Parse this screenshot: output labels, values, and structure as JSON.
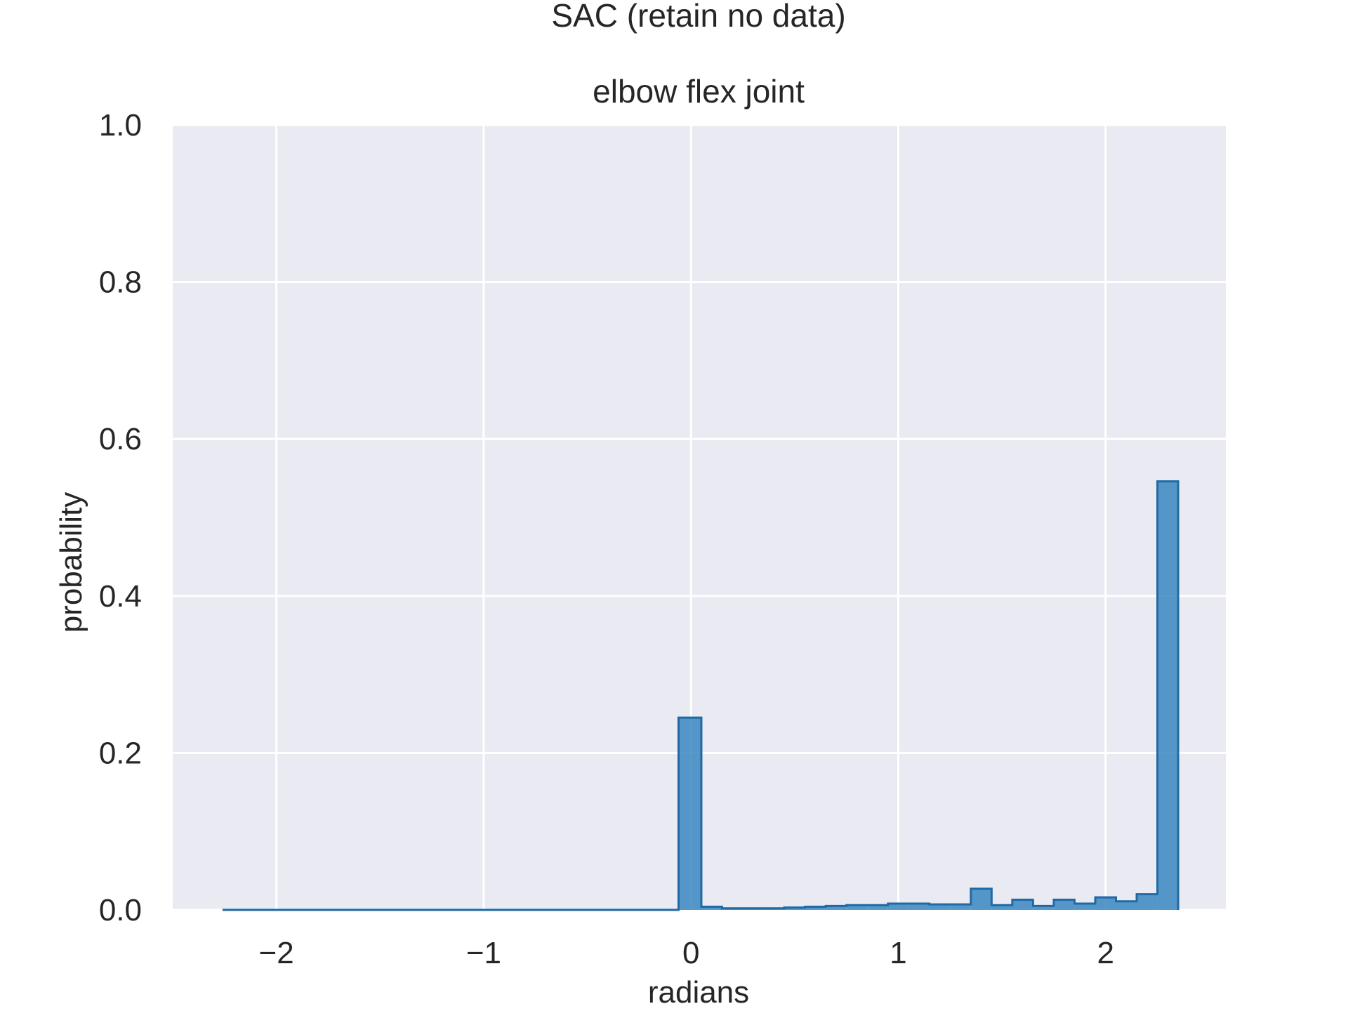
{
  "figure": {
    "suptitle": "SAC (retain no data)"
  },
  "chart_data": {
    "type": "bar",
    "subtype": "histogram-step-filled",
    "title": "elbow flex joint",
    "xlabel": "radians",
    "ylabel": "probability",
    "xlim": [
      -2.5,
      2.58
    ],
    "ylim": [
      0.0,
      1.0
    ],
    "xticks": [
      -2,
      -1,
      0,
      1,
      2
    ],
    "xtick_labels": [
      "−2",
      "−1",
      "0",
      "1",
      "2"
    ],
    "yticks": [
      0.0,
      0.2,
      0.4,
      0.6,
      0.8,
      1.0
    ],
    "ytick_labels": [
      "0.0",
      "0.2",
      "0.4",
      "0.6",
      "0.8",
      "1.0"
    ],
    "grid": true,
    "legend": "none",
    "colors": {
      "background": "#eaeaf2",
      "grid": "#ffffff",
      "bar_fill": "#3a87c0",
      "bar_edge": "#1f6aa5"
    },
    "bins": {
      "edges": [
        -2.26,
        -2.16,
        -2.06,
        -1.96,
        -1.86,
        -1.76,
        -1.66,
        -1.56,
        -1.46,
        -1.36,
        -1.26,
        -1.16,
        -1.06,
        -0.96,
        -0.86,
        -0.76,
        -0.66,
        -0.56,
        -0.46,
        -0.36,
        -0.26,
        -0.16,
        -0.06,
        0.05,
        0.15,
        0.25,
        0.35,
        0.45,
        0.55,
        0.65,
        0.75,
        0.85,
        0.95,
        1.05,
        1.15,
        1.25,
        1.35,
        1.45,
        1.55,
        1.65,
        1.75,
        1.85,
        1.95,
        2.05,
        2.15,
        2.25,
        2.35
      ],
      "values": [
        0,
        0,
        0,
        0,
        0,
        0,
        0,
        0,
        0,
        0,
        0,
        0,
        0,
        0,
        0,
        0,
        0,
        0,
        0,
        0,
        0,
        0,
        0.245,
        0.004,
        0.002,
        0.002,
        0.002,
        0.003,
        0.004,
        0.005,
        0.006,
        0.006,
        0.008,
        0.008,
        0.007,
        0.007,
        0.027,
        0.006,
        0.013,
        0.005,
        0.013,
        0.008,
        0.016,
        0.011,
        0.02,
        0.546
      ]
    }
  }
}
